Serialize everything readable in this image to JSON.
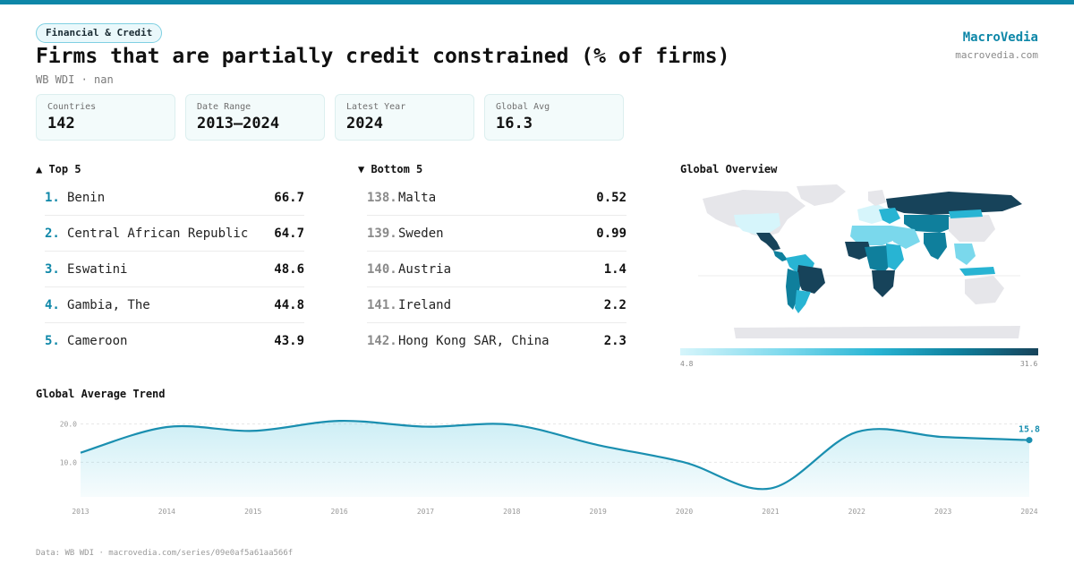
{
  "header": {
    "category_pill": "Financial & Credit",
    "title": "Firms that are partially credit constrained (% of firms)",
    "subtitle": "WB WDI · nan",
    "brand": "MacroVedia",
    "brand_url": "macrovedia.com"
  },
  "stats": [
    {
      "label": "Countries",
      "value": "142"
    },
    {
      "label": "Date Range",
      "value": "2013–2024"
    },
    {
      "label": "Latest Year",
      "value": "2024"
    },
    {
      "label": "Global Avg",
      "value": "16.3"
    }
  ],
  "top5": {
    "heading": "▲ Top 5",
    "items": [
      {
        "rank": "1.",
        "name": "Benin",
        "value": "66.7"
      },
      {
        "rank": "2.",
        "name": "Central African Republic",
        "value": "64.7"
      },
      {
        "rank": "3.",
        "name": "Eswatini",
        "value": "48.6"
      },
      {
        "rank": "4.",
        "name": "Gambia, The",
        "value": "44.8"
      },
      {
        "rank": "5.",
        "name": "Cameroon",
        "value": "43.9"
      }
    ]
  },
  "bottom5": {
    "heading": "▼ Bottom 5",
    "items": [
      {
        "rank": "138.",
        "name": "Malta",
        "value": "0.52"
      },
      {
        "rank": "139.",
        "name": "Sweden",
        "value": "0.99"
      },
      {
        "rank": "140.",
        "name": "Austria",
        "value": "1.4"
      },
      {
        "rank": "141.",
        "name": "Ireland",
        "value": "2.2"
      },
      {
        "rank": "142.",
        "name": "Hong Kong SAR, China",
        "value": "2.3"
      }
    ]
  },
  "map": {
    "heading": "Global Overview",
    "legend_min": "4.8",
    "legend_max": "31.6",
    "colors": {
      "low": "#d6f5fb",
      "mid": "#28b4d3",
      "high": "#17435a",
      "nodata": "#e6e6ea"
    }
  },
  "trend": {
    "heading": "Global Average Trend",
    "last_label": "15.8"
  },
  "chart_data": {
    "type": "area",
    "title": "Global Average Trend",
    "x": [
      "2013",
      "2014",
      "2015",
      "2016",
      "2017",
      "2018",
      "2019",
      "2020",
      "2021",
      "2022",
      "2023",
      "2024"
    ],
    "series": [
      {
        "values": [
          12.5,
          19.2,
          18.2,
          20.8,
          19.3,
          19.8,
          14.5,
          10.0,
          3.2,
          17.9,
          16.6,
          15.8
        ]
      }
    ],
    "yticks": [
      "10.0",
      "20.0"
    ],
    "ylim": [
      1,
      22
    ],
    "color": "#1a8fb0",
    "grid": true
  },
  "footer": {
    "source": "Data: WB WDI · macrovedia.com/series/09e0af5a61aa566f"
  }
}
